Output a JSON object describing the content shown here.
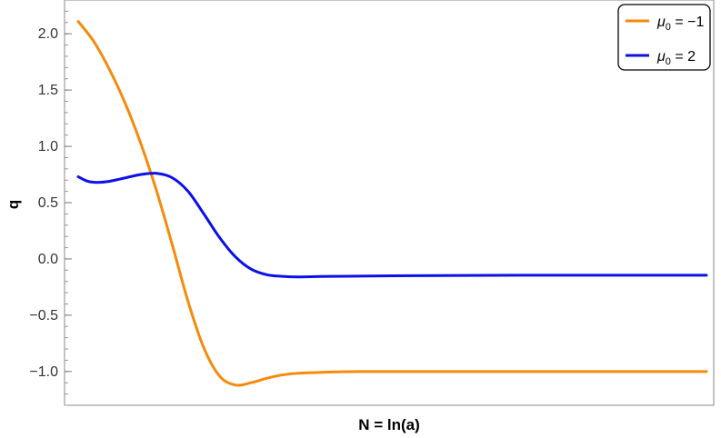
{
  "chart_data": {
    "type": "line",
    "title": "",
    "xlabel": "N = ln(a)",
    "ylabel": "q",
    "x_tick_labels": [],
    "ylim": [
      -1.3,
      2.3
    ],
    "y_ticks": [
      {
        "value": 2.0,
        "label": "2.0"
      },
      {
        "value": 1.5,
        "label": "1.5"
      },
      {
        "value": 1.0,
        "label": "1.0"
      },
      {
        "value": 0.5,
        "label": "0.5"
      },
      {
        "value": 0.0,
        "label": "0.0"
      },
      {
        "value": -0.5,
        "label": "−0.5"
      },
      {
        "value": -1.0,
        "label": "−1.0"
      }
    ],
    "legend_position": "top-right",
    "series": [
      {
        "name_symbol": "μ",
        "name_subscript": "0",
        "name_suffix": " = −1",
        "color": "#f58a0b",
        "points": [
          [
            0.0,
            2.11
          ],
          [
            0.5,
            1.93
          ],
          [
            1.0,
            1.68
          ],
          [
            1.5,
            1.38
          ],
          [
            2.0,
            1.02
          ],
          [
            2.5,
            0.6
          ],
          [
            3.0,
            0.12
          ],
          [
            3.5,
            -0.38
          ],
          [
            4.0,
            -0.79
          ],
          [
            4.5,
            -1.04
          ],
          [
            5.0,
            -1.12
          ],
          [
            5.5,
            -1.1
          ],
          [
            6.0,
            -1.06
          ],
          [
            6.5,
            -1.03
          ],
          [
            7.0,
            -1.015
          ],
          [
            8.0,
            -1.005
          ],
          [
            9.0,
            -1.0
          ],
          [
            12.0,
            -1.0
          ],
          [
            16.0,
            -1.0
          ],
          [
            20.0,
            -1.0
          ]
        ]
      },
      {
        "name_symbol": "μ",
        "name_subscript": "0",
        "name_suffix": " = 2",
        "color": "#0a10e8",
        "points": [
          [
            0.0,
            0.73
          ],
          [
            0.3,
            0.69
          ],
          [
            0.6,
            0.68
          ],
          [
            1.0,
            0.69
          ],
          [
            1.5,
            0.72
          ],
          [
            2.0,
            0.75
          ],
          [
            2.5,
            0.76
          ],
          [
            3.0,
            0.72
          ],
          [
            3.5,
            0.6
          ],
          [
            4.0,
            0.4
          ],
          [
            4.5,
            0.19
          ],
          [
            5.0,
            0.02
          ],
          [
            5.5,
            -0.09
          ],
          [
            6.0,
            -0.14
          ],
          [
            6.5,
            -0.155
          ],
          [
            7.0,
            -0.16
          ],
          [
            8.0,
            -0.155
          ],
          [
            10.0,
            -0.15
          ],
          [
            14.0,
            -0.145
          ],
          [
            20.0,
            -0.145
          ]
        ]
      }
    ]
  }
}
